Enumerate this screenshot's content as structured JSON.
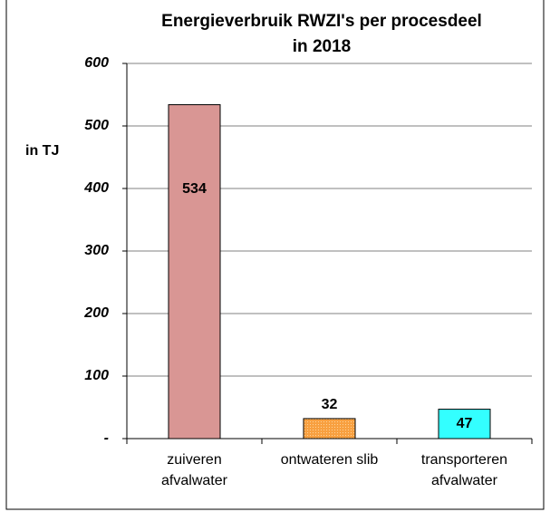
{
  "chart_data": {
    "type": "bar",
    "title_lines": [
      "Energieverbruik RWZI's per procesdeel",
      "in 2018"
    ],
    "y_label": "in TJ",
    "categories": [
      [
        "zuiveren",
        "afvalwater"
      ],
      [
        "ontwateren slib"
      ],
      [
        "transporteren",
        "afvalwater"
      ]
    ],
    "values": [
      534,
      32,
      47
    ],
    "colors": [
      "#d99694",
      "#f8a040",
      "#33ffff"
    ],
    "ylim": [
      0,
      600
    ],
    "yticks": [
      {
        "value": 0,
        "label": "-"
      },
      100,
      200,
      300,
      400,
      500,
      600
    ],
    "grid": true
  }
}
